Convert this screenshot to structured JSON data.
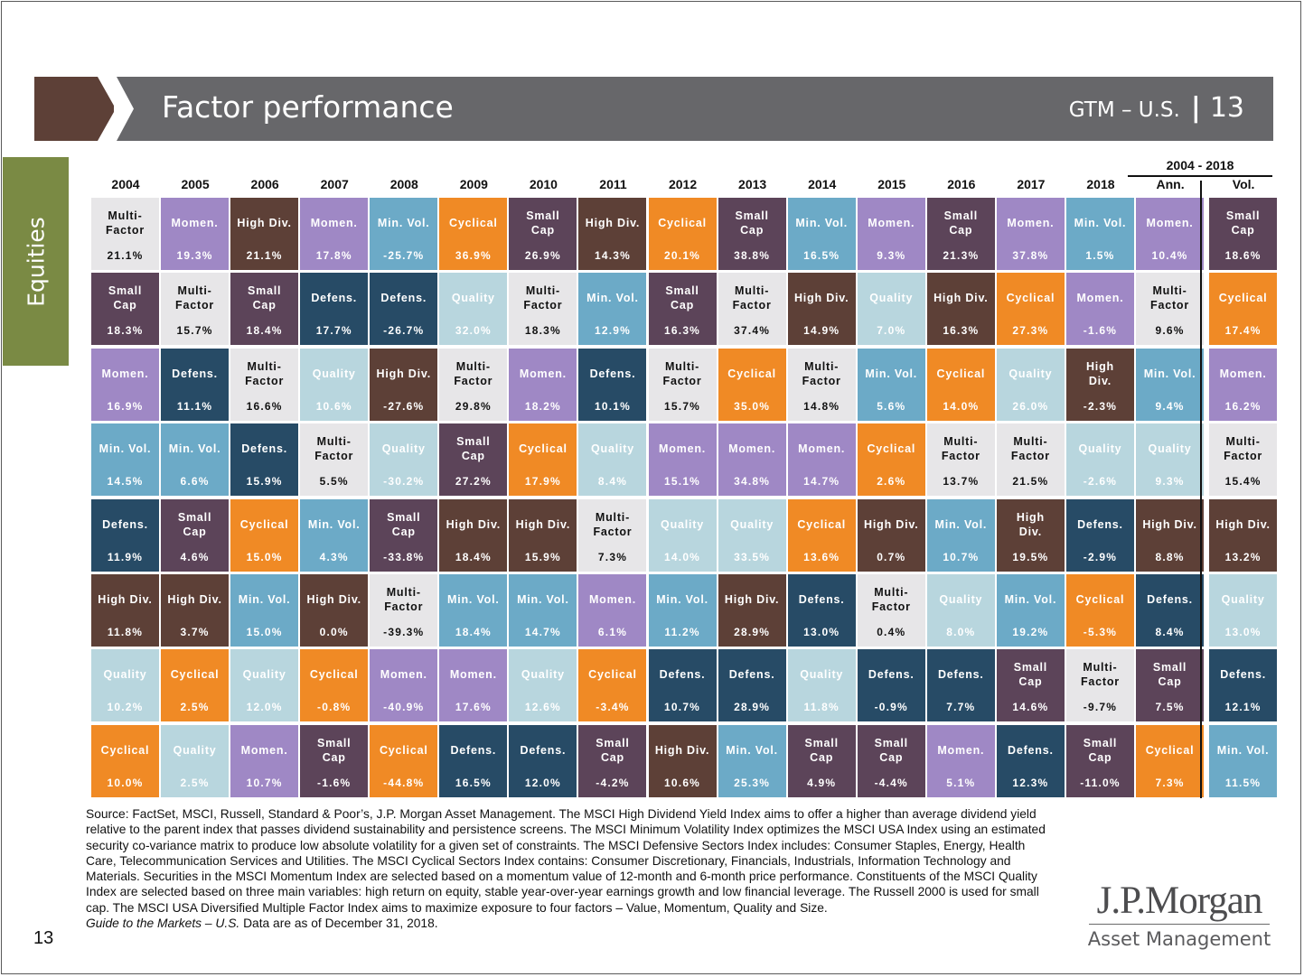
{
  "header": {
    "title": "Factor performance",
    "series_label": "GTM – U.S.",
    "separator": "|",
    "page": "13"
  },
  "side_tab": {
    "label": "Equities"
  },
  "colors": {
    "header_bar": "#67676a",
    "header_arrow": "#5d4037",
    "side_tab": "#7a8a44",
    "factors": {
      "Multi-Factor": {
        "bg": "#e7e6e8",
        "fg": "#111111"
      },
      "Momen.": {
        "bg": "#9f88c5",
        "fg": "#ffffff"
      },
      "High Div.": {
        "bg": "#5d4037",
        "fg": "#ffffff"
      },
      "Min. Vol.": {
        "bg": "#6caac7",
        "fg": "#ffffff"
      },
      "Cyclical": {
        "bg": "#f08a25",
        "fg": "#ffffff"
      },
      "Small Cap": {
        "bg": "#5c4459",
        "fg": "#ffffff"
      },
      "Defens.": {
        "bg": "#274b66",
        "fg": "#ffffff"
      },
      "Quality": {
        "bg": "#b8d6de",
        "fg": "#ffffff"
      }
    }
  },
  "chart_data": {
    "type": "table",
    "title": "Factor performance",
    "period_header": "2004 - 2018",
    "columns": [
      "2004",
      "2005",
      "2006",
      "2007",
      "2008",
      "2009",
      "2010",
      "2011",
      "2012",
      "2013",
      "2014",
      "2015",
      "2016",
      "2017",
      "2018",
      "Ann.",
      "Vol."
    ],
    "cells": [
      [
        {
          "factor": "Multi-Factor",
          "label": "Multi-\nFactor",
          "value": "21.1%"
        },
        {
          "factor": "Small Cap",
          "label": "Small\nCap",
          "value": "18.3%"
        },
        {
          "factor": "Momen.",
          "label": "Momen.",
          "value": "16.9%"
        },
        {
          "factor": "Min. Vol.",
          "label": "Min. Vol.",
          "value": "14.5%"
        },
        {
          "factor": "Defens.",
          "label": "Defens.",
          "value": "11.9%"
        },
        {
          "factor": "High Div.",
          "label": "High Div.",
          "value": "11.8%"
        },
        {
          "factor": "Quality",
          "label": "Quality",
          "value": "10.2%"
        },
        {
          "factor": "Cyclical",
          "label": "Cyclical",
          "value": "10.0%"
        }
      ],
      [
        {
          "factor": "Momen.",
          "label": "Momen.",
          "value": "19.3%"
        },
        {
          "factor": "Multi-Factor",
          "label": "Multi-\nFactor",
          "value": "15.7%"
        },
        {
          "factor": "Defens.",
          "label": "Defens.",
          "value": "11.1%"
        },
        {
          "factor": "Min. Vol.",
          "label": "Min. Vol.",
          "value": "6.6%"
        },
        {
          "factor": "Small Cap",
          "label": "Small\nCap",
          "value": "4.6%"
        },
        {
          "factor": "High Div.",
          "label": "High Div.",
          "value": "3.7%"
        },
        {
          "factor": "Cyclical",
          "label": "Cyclical",
          "value": "2.5%"
        },
        {
          "factor": "Quality",
          "label": "Quality",
          "value": "2.5%"
        }
      ],
      [
        {
          "factor": "High Div.",
          "label": "High Div.",
          "value": "21.1%"
        },
        {
          "factor": "Small Cap",
          "label": "Small\nCap",
          "value": "18.4%"
        },
        {
          "factor": "Multi-Factor",
          "label": "Multi-\nFactor",
          "value": "16.6%"
        },
        {
          "factor": "Defens.",
          "label": "Defens.",
          "value": "15.9%"
        },
        {
          "factor": "Cyclical",
          "label": "Cyclical",
          "value": "15.0%"
        },
        {
          "factor": "Min. Vol.",
          "label": "Min. Vol.",
          "value": "15.0%"
        },
        {
          "factor": "Quality",
          "label": "Quality",
          "value": "12.0%"
        },
        {
          "factor": "Momen.",
          "label": "Momen.",
          "value": "10.7%"
        }
      ],
      [
        {
          "factor": "Momen.",
          "label": "Momen.",
          "value": "17.8%"
        },
        {
          "factor": "Defens.",
          "label": "Defens.",
          "value": "17.7%"
        },
        {
          "factor": "Quality",
          "label": "Quality",
          "value": "10.6%"
        },
        {
          "factor": "Multi-Factor",
          "label": "Multi-\nFactor",
          "value": "5.5%"
        },
        {
          "factor": "Min. Vol.",
          "label": "Min. Vol.",
          "value": "4.3%"
        },
        {
          "factor": "High Div.",
          "label": "High Div.",
          "value": "0.0%"
        },
        {
          "factor": "Cyclical",
          "label": "Cyclical",
          "value": "-0.8%"
        },
        {
          "factor": "Small Cap",
          "label": "Small\nCap",
          "value": "-1.6%"
        }
      ],
      [
        {
          "factor": "Min. Vol.",
          "label": "Min. Vol.",
          "value": "-25.7%"
        },
        {
          "factor": "Defens.",
          "label": "Defens.",
          "value": "-26.7%"
        },
        {
          "factor": "High Div.",
          "label": "High Div.",
          "value": "-27.6%"
        },
        {
          "factor": "Quality",
          "label": "Quality",
          "value": "-30.2%"
        },
        {
          "factor": "Small Cap",
          "label": "Small\nCap",
          "value": "-33.8%"
        },
        {
          "factor": "Multi-Factor",
          "label": "Multi-\nFactor",
          "value": "-39.3%"
        },
        {
          "factor": "Momen.",
          "label": "Momen.",
          "value": "-40.9%"
        },
        {
          "factor": "Cyclical",
          "label": "Cyclical",
          "value": "-44.8%"
        }
      ],
      [
        {
          "factor": "Cyclical",
          "label": "Cyclical",
          "value": "36.9%"
        },
        {
          "factor": "Quality",
          "label": "Quality",
          "value": "32.0%"
        },
        {
          "factor": "Multi-Factor",
          "label": "Multi-\nFactor",
          "value": "29.8%"
        },
        {
          "factor": "Small Cap",
          "label": "Small\nCap",
          "value": "27.2%"
        },
        {
          "factor": "High Div.",
          "label": "High Div.",
          "value": "18.4%"
        },
        {
          "factor": "Min. Vol.",
          "label": "Min. Vol.",
          "value": "18.4%"
        },
        {
          "factor": "Momen.",
          "label": "Momen.",
          "value": "17.6%"
        },
        {
          "factor": "Defens.",
          "label": "Defens.",
          "value": "16.5%"
        }
      ],
      [
        {
          "factor": "Small Cap",
          "label": "Small\nCap",
          "value": "26.9%"
        },
        {
          "factor": "Multi-Factor",
          "label": "Multi-\nFactor",
          "value": "18.3%"
        },
        {
          "factor": "Momen.",
          "label": "Momen.",
          "value": "18.2%"
        },
        {
          "factor": "Cyclical",
          "label": "Cyclical",
          "value": "17.9%"
        },
        {
          "factor": "High Div.",
          "label": "High Div.",
          "value": "15.9%"
        },
        {
          "factor": "Min. Vol.",
          "label": "Min. Vol.",
          "value": "14.7%"
        },
        {
          "factor": "Quality",
          "label": "Quality",
          "value": "12.6%"
        },
        {
          "factor": "Defens.",
          "label": "Defens.",
          "value": "12.0%"
        }
      ],
      [
        {
          "factor": "High Div.",
          "label": "High Div.",
          "value": "14.3%"
        },
        {
          "factor": "Min. Vol.",
          "label": "Min. Vol.",
          "value": "12.9%"
        },
        {
          "factor": "Defens.",
          "label": "Defens.",
          "value": "10.1%"
        },
        {
          "factor": "Quality",
          "label": "Quality",
          "value": "8.4%"
        },
        {
          "factor": "Multi-Factor",
          "label": "Multi-\nFactor",
          "value": "7.3%"
        },
        {
          "factor": "Momen.",
          "label": "Momen.",
          "value": "6.1%"
        },
        {
          "factor": "Cyclical",
          "label": "Cyclical",
          "value": "-3.4%"
        },
        {
          "factor": "Small Cap",
          "label": "Small\nCap",
          "value": "-4.2%"
        }
      ],
      [
        {
          "factor": "Cyclical",
          "label": "Cyclical",
          "value": "20.1%"
        },
        {
          "factor": "Small Cap",
          "label": "Small\nCap",
          "value": "16.3%"
        },
        {
          "factor": "Multi-Factor",
          "label": "Multi-\nFactor",
          "value": "15.7%"
        },
        {
          "factor": "Momen.",
          "label": "Momen.",
          "value": "15.1%"
        },
        {
          "factor": "Quality",
          "label": "Quality",
          "value": "14.0%"
        },
        {
          "factor": "Min. Vol.",
          "label": "Min. Vol.",
          "value": "11.2%"
        },
        {
          "factor": "Defens.",
          "label": "Defens.",
          "value": "10.7%"
        },
        {
          "factor": "High Div.",
          "label": "High Div.",
          "value": "10.6%"
        }
      ],
      [
        {
          "factor": "Small Cap",
          "label": "Small\nCap",
          "value": "38.8%"
        },
        {
          "factor": "Multi-Factor",
          "label": "Multi-\nFactor",
          "value": "37.4%"
        },
        {
          "factor": "Cyclical",
          "label": "Cyclical",
          "value": "35.0%"
        },
        {
          "factor": "Momen.",
          "label": "Momen.",
          "value": "34.8%"
        },
        {
          "factor": "Quality",
          "label": "Quality",
          "value": "33.5%"
        },
        {
          "factor": "High Div.",
          "label": "High Div.",
          "value": "28.9%"
        },
        {
          "factor": "Defens.",
          "label": "Defens.",
          "value": "28.9%"
        },
        {
          "factor": "Min. Vol.",
          "label": "Min. Vol.",
          "value": "25.3%"
        }
      ],
      [
        {
          "factor": "Min. Vol.",
          "label": "Min. Vol.",
          "value": "16.5%"
        },
        {
          "factor": "High Div.",
          "label": "High Div.",
          "value": "14.9%"
        },
        {
          "factor": "Multi-Factor",
          "label": "Multi-\nFactor",
          "value": "14.8%"
        },
        {
          "factor": "Momen.",
          "label": "Momen.",
          "value": "14.7%"
        },
        {
          "factor": "Cyclical",
          "label": "Cyclical",
          "value": "13.6%"
        },
        {
          "factor": "Defens.",
          "label": "Defens.",
          "value": "13.0%"
        },
        {
          "factor": "Quality",
          "label": "Quality",
          "value": "11.8%"
        },
        {
          "factor": "Small Cap",
          "label": "Small\nCap",
          "value": "4.9%"
        }
      ],
      [
        {
          "factor": "Momen.",
          "label": "Momen.",
          "value": "9.3%"
        },
        {
          "factor": "Quality",
          "label": "Quality",
          "value": "7.0%"
        },
        {
          "factor": "Min. Vol.",
          "label": "Min. Vol.",
          "value": "5.6%"
        },
        {
          "factor": "Cyclical",
          "label": "Cyclical",
          "value": "2.6%"
        },
        {
          "factor": "High Div.",
          "label": "High Div.",
          "value": "0.7%"
        },
        {
          "factor": "Multi-Factor",
          "label": "Multi-\nFactor",
          "value": "0.4%"
        },
        {
          "factor": "Defens.",
          "label": "Defens.",
          "value": "-0.9%"
        },
        {
          "factor": "Small Cap",
          "label": "Small\nCap",
          "value": "-4.4%"
        }
      ],
      [
        {
          "factor": "Small Cap",
          "label": "Small\nCap",
          "value": "21.3%"
        },
        {
          "factor": "High Div.",
          "label": "High Div.",
          "value": "16.3%"
        },
        {
          "factor": "Cyclical",
          "label": "Cyclical",
          "value": "14.0%"
        },
        {
          "factor": "Multi-Factor",
          "label": "Multi-\nFactor",
          "value": "13.7%"
        },
        {
          "factor": "Min. Vol.",
          "label": "Min. Vol.",
          "value": "10.7%"
        },
        {
          "factor": "Quality",
          "label": "Quality",
          "value": "8.0%"
        },
        {
          "factor": "Defens.",
          "label": "Defens.",
          "value": "7.7%"
        },
        {
          "factor": "Momen.",
          "label": "Momen.",
          "value": "5.1%"
        }
      ],
      [
        {
          "factor": "Momen.",
          "label": "Momen.",
          "value": "37.8%"
        },
        {
          "factor": "Cyclical",
          "label": "Cyclical",
          "value": "27.3%"
        },
        {
          "factor": "Quality",
          "label": "Quality",
          "value": "26.0%"
        },
        {
          "factor": "Multi-Factor",
          "label": "Multi-\nFactor",
          "value": "21.5%"
        },
        {
          "factor": "High Div.",
          "label": "High\nDiv.",
          "value": "19.5%"
        },
        {
          "factor": "Min. Vol.",
          "label": "Min. Vol.",
          "value": "19.2%"
        },
        {
          "factor": "Small Cap",
          "label": "Small\nCap",
          "value": "14.6%"
        },
        {
          "factor": "Defens.",
          "label": "Defens.",
          "value": "12.3%"
        }
      ],
      [
        {
          "factor": "Min. Vol.",
          "label": "Min. Vol.",
          "value": "1.5%"
        },
        {
          "factor": "Momen.",
          "label": "Momen.",
          "value": "-1.6%"
        },
        {
          "factor": "High Div.",
          "label": "High\nDiv.",
          "value": "-2.3%"
        },
        {
          "factor": "Quality",
          "label": "Quality",
          "value": "-2.6%"
        },
        {
          "factor": "Defens.",
          "label": "Defens.",
          "value": "-2.9%"
        },
        {
          "factor": "Cyclical",
          "label": "Cyclical",
          "value": "-5.3%"
        },
        {
          "factor": "Multi-Factor",
          "label": "Multi-\nFactor",
          "value": "-9.7%"
        },
        {
          "factor": "Small Cap",
          "label": "Small\nCap",
          "value": "-11.0%"
        }
      ],
      [
        {
          "factor": "Momen.",
          "label": "Momen.",
          "value": "10.4%"
        },
        {
          "factor": "Multi-Factor",
          "label": "Multi-\nFactor",
          "value": "9.6%"
        },
        {
          "factor": "Min. Vol.",
          "label": "Min. Vol.",
          "value": "9.4%"
        },
        {
          "factor": "Quality",
          "label": "Quality",
          "value": "9.3%"
        },
        {
          "factor": "High Div.",
          "label": "High Div.",
          "value": "8.8%"
        },
        {
          "factor": "Defens.",
          "label": "Defens.",
          "value": "8.4%"
        },
        {
          "factor": "Small Cap",
          "label": "Small\nCap",
          "value": "7.5%"
        },
        {
          "factor": "Cyclical",
          "label": "Cyclical",
          "value": "7.3%"
        }
      ],
      [
        {
          "factor": "Small Cap",
          "label": "Small\nCap",
          "value": "18.6%"
        },
        {
          "factor": "Cyclical",
          "label": "Cyclical",
          "value": "17.4%"
        },
        {
          "factor": "Momen.",
          "label": "Momen.",
          "value": "16.2%"
        },
        {
          "factor": "Multi-Factor",
          "label": "Multi-\nFactor",
          "value": "15.4%"
        },
        {
          "factor": "High Div.",
          "label": "High Div.",
          "value": "13.2%"
        },
        {
          "factor": "Quality",
          "label": "Quality",
          "value": "13.0%"
        },
        {
          "factor": "Defens.",
          "label": "Defens.",
          "value": "12.1%"
        },
        {
          "factor": "Min. Vol.",
          "label": "Min. Vol.",
          "value": "11.5%"
        }
      ]
    ]
  },
  "footer": {
    "source_text": "Source: FactSet, MSCI, Russell, Standard & Poor’s, J.P. Morgan Asset Management. The MSCI High Dividend Yield Index aims to offer a higher than average dividend yield relative to the parent index that passes dividend sustainability and persistence screens. The MSCI Minimum Volatility Index optimizes the MSCI USA Index using an estimated security co-variance matrix to produce low absolute volatility for a given set of constraints. The MSCI Defensive Sectors Index includes: Consumer Staples, Energy, Health Care, Telecommunication Services and Utilities. The MSCI Cyclical Sectors Index contains: Consumer Discretionary, Financials, Industrials, Information Technology and Materials. Securities in the MSCI Momentum Index are selected based on a momentum value of 12-month and 6-month price performance. Constituents of the MSCI Quality Index are selected based on three main variables: high return on equity, stable year-over-year earnings growth and low financial leverage. The Russell 2000 is used for small cap. The MSCI USA Diversified Multiple Factor Index aims to maximize exposure to four factors – Value, Momentum, Quality and Size.",
    "guide_italic": "Guide to the Markets – U.S.",
    "guide_rest": " Data are as of December 31, 2018.",
    "page_number": "13"
  },
  "logo": {
    "name": "J.P.Morgan",
    "subtitle": "Asset Management"
  }
}
